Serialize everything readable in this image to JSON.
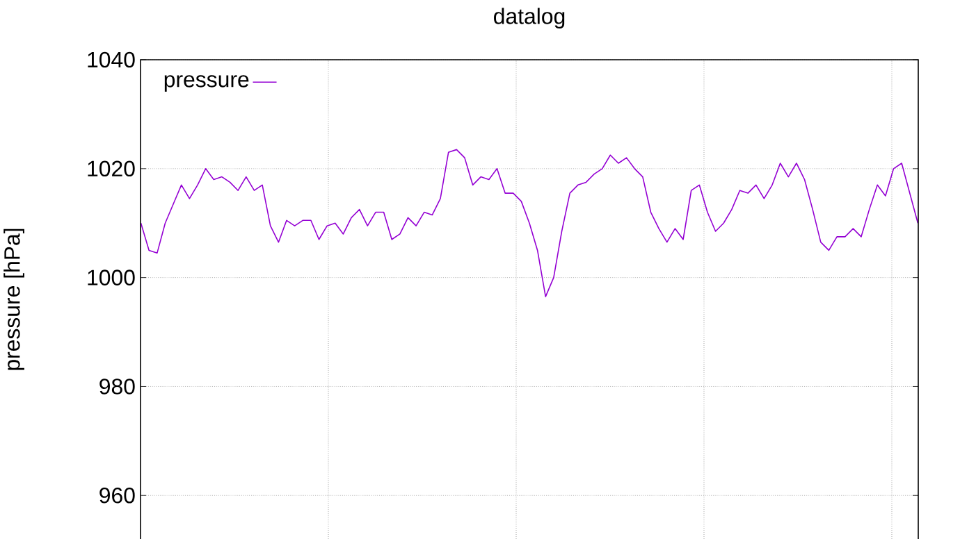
{
  "chart_data": {
    "type": "line",
    "title": "datalog",
    "ylabel": "pressure [hPa]",
    "categories": [
      null,
      null,
      null,
      null,
      null,
      null,
      null,
      null,
      null,
      null,
      null,
      null,
      null,
      null,
      null,
      null,
      null,
      null,
      null,
      null,
      null,
      null,
      null,
      null,
      null,
      null,
      null,
      null,
      null,
      null,
      null,
      null,
      null,
      null,
      null,
      null,
      null,
      null,
      null,
      null,
      null,
      null,
      null,
      null,
      null,
      null,
      null,
      null,
      null,
      null,
      null,
      null,
      null,
      null,
      null,
      null,
      null,
      null,
      null,
      null,
      null,
      null,
      null,
      null,
      null,
      null,
      null,
      null,
      null,
      null,
      null,
      null,
      null,
      null,
      null,
      null,
      null,
      null,
      null,
      null,
      null,
      null,
      null,
      null,
      null,
      null,
      null,
      null,
      null,
      null,
      null,
      null,
      null,
      null,
      null,
      null,
      null
    ],
    "ylim": [
      952,
      1040
    ],
    "yticks": [
      960,
      980,
      1000,
      1020,
      1040
    ],
    "grid": true,
    "legend": "top left",
    "tick_labels": "y",
    "series": [
      {
        "name": "pressure",
        "color": "#9400d3",
        "values": [
          1010,
          1005,
          1004.5,
          1010,
          1013.5,
          1017,
          1014.5,
          1017,
          1020,
          1018,
          1018.5,
          1017.5,
          1016,
          1018.5,
          1016,
          1017,
          1009.5,
          1006.5,
          1010.5,
          1009.5,
          1010.5,
          1010.5,
          1007,
          1009.5,
          1010,
          1008,
          1011,
          1012.5,
          1009.5,
          1012,
          1012,
          1007,
          1008,
          1011,
          1009.5,
          1012,
          1011.5,
          1014.5,
          1023,
          1023.5,
          1022,
          1017,
          1018.5,
          1018,
          1020,
          1015.5,
          1015.5,
          1014,
          1010,
          1005,
          996.5,
          1000,
          1008.5,
          1015.5,
          1017,
          1017.5,
          1019,
          1020,
          1022.5,
          1021,
          1022,
          1020,
          1018.5,
          1012,
          1009,
          1006.5,
          1009,
          1007,
          1016,
          1017,
          1012,
          1008.5,
          1010,
          1012.5,
          1016,
          1015.5,
          1017,
          1014.5,
          1017,
          1021,
          1018.5,
          1021,
          1018,
          1012.5,
          1006.5,
          1005,
          1007.5,
          1007.5,
          1009,
          1007.5,
          1012.5,
          1017,
          1015,
          1020,
          1021,
          1015.5,
          1010
        ]
      }
    ]
  }
}
